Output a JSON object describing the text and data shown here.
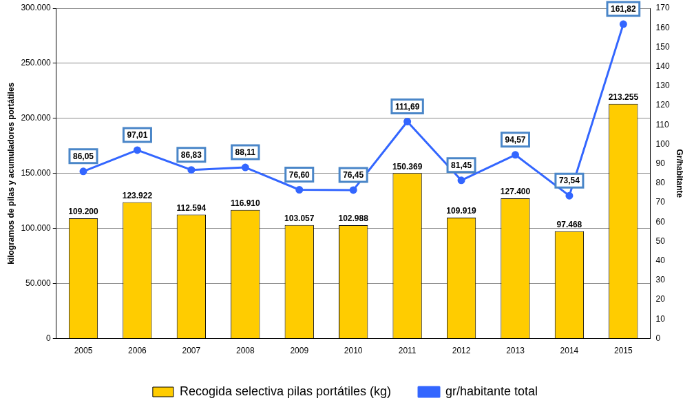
{
  "chart_data": {
    "type": "bar",
    "categories": [
      "2005",
      "2006",
      "2007",
      "2008",
      "2009",
      "2010",
      "2011",
      "2012",
      "2013",
      "2014",
      "2015"
    ],
    "ylabel": "kilogramos de pilas y acumuladores portátiles",
    "y2label": "Gr/habitante",
    "ylim": [
      0,
      300000
    ],
    "yticks": [
      0,
      {
        "value": 50000,
        "label": "50.000"
      },
      {
        "value": 100000,
        "label": "100.000"
      },
      {
        "value": 150000,
        "label": "150.000"
      },
      {
        "value": 200000,
        "label": "200.000"
      },
      {
        "value": 250000,
        "label": "250.000"
      },
      {
        "value": 300000,
        "label": "300.000"
      }
    ],
    "y2lim": [
      0,
      170
    ],
    "y2ticks": [
      0,
      10,
      20,
      30,
      40,
      50,
      60,
      70,
      80,
      90,
      100,
      110,
      120,
      130,
      140,
      150,
      160,
      170
    ],
    "grid": "y",
    "legend": "bottom",
    "marker": "circle",
    "series": [
      {
        "name": "Recogida selectiva pilas portátiles (kg)",
        "color": "#ffcc00",
        "values": [
          109200,
          123922,
          112594,
          116910,
          103057,
          102988,
          150369,
          109919,
          127400,
          97468,
          213255
        ],
        "value_labels": [
          "109.200",
          "123.922",
          "112.594",
          "116.910",
          "103.057",
          "102.988",
          "150.369",
          "109.919",
          "127.400",
          "97.468",
          "213.255"
        ]
      },
      {
        "type": "line",
        "axis": "y2",
        "name": "gr/habitante total",
        "color": "#3366ff",
        "values": [
          86.05,
          97.01,
          86.83,
          88.11,
          76.6,
          76.45,
          111.69,
          81.45,
          94.57,
          73.54,
          161.82
        ],
        "value_labels": [
          "86,05",
          "97,01",
          "86,83",
          "88,11",
          "76,60",
          "76,45",
          "111,69",
          "81,45",
          "94,57",
          "73,54",
          "161,82"
        ]
      }
    ]
  }
}
